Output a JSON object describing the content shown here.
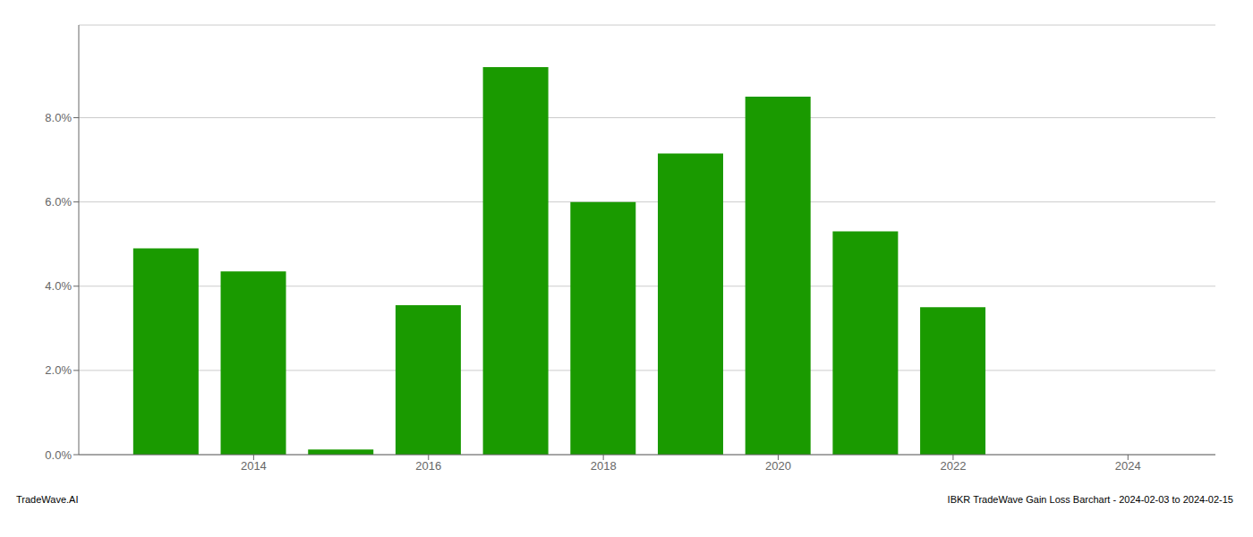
{
  "chart_data": {
    "type": "bar",
    "x": [
      2013,
      2014,
      2015,
      2016,
      2017,
      2018,
      2019,
      2020,
      2021,
      2022,
      2023
    ],
    "values": [
      0.049,
      0.0435,
      0.0012,
      0.0355,
      0.092,
      0.06,
      0.0715,
      0.085,
      0.053,
      0.035,
      0.0
    ],
    "color": "#1a9a00",
    "xlim": [
      2012.0,
      2025.0
    ],
    "xticks": [
      2014,
      2016,
      2018,
      2020,
      2022,
      2024
    ],
    "ylim": [
      0.0,
      0.102
    ],
    "yticks": [
      {
        "value": 0.0,
        "label": "0.0%"
      },
      {
        "value": 0.02,
        "label": "2.0%"
      },
      {
        "value": 0.04,
        "label": "4.0%"
      },
      {
        "value": 0.06,
        "label": "6.0%"
      },
      {
        "value": 0.08,
        "label": "8.0%"
      }
    ],
    "grid": true,
    "annotations": [
      "TradeWave.AI",
      "IBKR TradeWave Gain Loss Barchart - 2024-02-03 to 2024-02-15"
    ]
  }
}
